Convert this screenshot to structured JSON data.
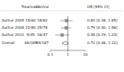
{
  "chart_data": {
    "type": "forest",
    "columns": [
      "Treatment",
      "Control"
    ],
    "ci_header": "OR [95% CI]",
    "rows": [
      {
        "label": "Author 2005",
        "treatment": "15/60",
        "control": "18/62",
        "value": 0.84,
        "lower": 0.38,
        "upper": 1.85,
        "value_label": "0.84 [0.38, 1.85]"
      },
      {
        "label": "Author 2008",
        "treatment": "22/80",
        "control": "25/78",
        "value": 0.79,
        "lower": 0.4,
        "upper": 1.56,
        "value_label": "0.79 [0.40, 1.56]"
      },
      {
        "label": "Author 2012",
        "treatment": "9/45",
        "control": "16/47",
        "value": 0.48,
        "lower": 0.19,
        "upper": 1.24,
        "value_label": "0.48 [0.19, 1.24]"
      }
    ],
    "overall": {
      "label": "Overall",
      "treatment": "46/185",
      "control": "59/187",
      "value": 0.72,
      "lower": 0.46,
      "upper": 1.12,
      "value_label": "0.72 [0.46, 1.12]"
    },
    "xlim": [
      0.1,
      10
    ],
    "xticks": [
      0.1,
      1,
      10
    ],
    "log": "x",
    "reference_line": 1,
    "color": "#8c8c8c"
  }
}
